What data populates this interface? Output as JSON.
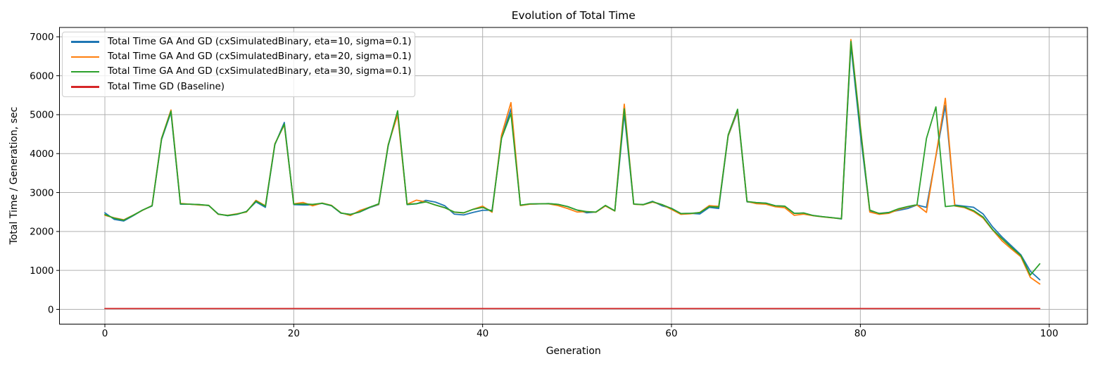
{
  "chart_data": {
    "type": "line",
    "title": "Evolution of Total Time",
    "xlabel": "Generation",
    "ylabel": "Total Time / Generation, sec",
    "grid": true,
    "legend_position": "upper left",
    "xticks": [
      0,
      20,
      40,
      60,
      80,
      100
    ],
    "yticks": [
      0,
      1000,
      2000,
      3000,
      4000,
      5000,
      6000,
      7000
    ],
    "xlim": [
      -4.95,
      103.95
    ],
    "ylim": [
      -380,
      7240
    ],
    "x": [
      0,
      1,
      2,
      3,
      4,
      5,
      6,
      7,
      8,
      9,
      10,
      11,
      12,
      13,
      14,
      15,
      16,
      17,
      18,
      19,
      20,
      21,
      22,
      23,
      24,
      25,
      26,
      27,
      28,
      29,
      30,
      31,
      32,
      33,
      34,
      35,
      36,
      37,
      38,
      39,
      40,
      41,
      42,
      43,
      44,
      45,
      46,
      47,
      48,
      49,
      50,
      51,
      52,
      53,
      54,
      55,
      56,
      57,
      58,
      59,
      60,
      61,
      62,
      63,
      64,
      65,
      66,
      67,
      68,
      69,
      70,
      71,
      72,
      73,
      74,
      75,
      76,
      77,
      78,
      79,
      80,
      81,
      82,
      83,
      84,
      85,
      86,
      87,
      88,
      89,
      90,
      91,
      92,
      93,
      94,
      95,
      96,
      97,
      98,
      99
    ],
    "series": [
      {
        "id": "ga-eta10",
        "name": "Total Time GA And GD (cxSimulatedBinary, eta=10, sigma=0.1)",
        "color": "#1f77b4",
        "values": [
          2480,
          2310,
          2270,
          2405,
          2550,
          2655,
          4360,
          5060,
          2700,
          2700,
          2690,
          2665,
          2450,
          2405,
          2440,
          2515,
          2760,
          2620,
          4230,
          4800,
          2690,
          2680,
          2680,
          2720,
          2660,
          2470,
          2440,
          2500,
          2610,
          2690,
          4200,
          5050,
          2690,
          2710,
          2800,
          2755,
          2660,
          2445,
          2425,
          2490,
          2545,
          2545,
          4390,
          5150,
          2675,
          2705,
          2710,
          2715,
          2695,
          2640,
          2550,
          2480,
          2500,
          2660,
          2530,
          5030,
          2700,
          2690,
          2775,
          2660,
          2595,
          2460,
          2465,
          2450,
          2620,
          2590,
          4450,
          5080,
          2760,
          2740,
          2730,
          2660,
          2650,
          2465,
          2475,
          2410,
          2380,
          2355,
          2320,
          6780,
          4500,
          2525,
          2465,
          2490,
          2540,
          2590,
          2680,
          2620,
          3930,
          5235,
          2680,
          2650,
          2620,
          2450,
          2120,
          1860,
          1630,
          1400,
          980,
          760
        ]
      },
      {
        "id": "ga-eta20",
        "name": "Total Time GA And GD (cxSimulatedBinary, eta=20, sigma=0.1)",
        "color": "#ff7f0e",
        "values": [
          2415,
          2350,
          2300,
          2420,
          2545,
          2665,
          4390,
          5120,
          2720,
          2700,
          2680,
          2670,
          2440,
          2415,
          2455,
          2500,
          2800,
          2660,
          4250,
          4740,
          2710,
          2745,
          2660,
          2730,
          2670,
          2480,
          2410,
          2540,
          2620,
          2700,
          4230,
          4990,
          2700,
          2805,
          2760,
          2680,
          2610,
          2495,
          2475,
          2570,
          2650,
          2495,
          4475,
          5310,
          2665,
          2700,
          2710,
          2710,
          2665,
          2590,
          2500,
          2510,
          2495,
          2655,
          2525,
          5270,
          2700,
          2685,
          2755,
          2690,
          2565,
          2440,
          2455,
          2490,
          2665,
          2645,
          4460,
          5110,
          2770,
          2715,
          2700,
          2635,
          2610,
          2415,
          2445,
          2405,
          2375,
          2350,
          2330,
          6930,
          4700,
          2500,
          2440,
          2465,
          2560,
          2630,
          2680,
          2490,
          3950,
          5420,
          2655,
          2615,
          2510,
          2345,
          2040,
          1760,
          1550,
          1350,
          820,
          650
        ]
      },
      {
        "id": "ga-eta30",
        "name": "Total Time GA And GD (cxSimulatedBinary, eta=30, sigma=0.1)",
        "color": "#2ca02c",
        "values": [
          2435,
          2340,
          2290,
          2415,
          2550,
          2660,
          4380,
          5090,
          2710,
          2700,
          2690,
          2670,
          2445,
          2410,
          2445,
          2510,
          2780,
          2650,
          4240,
          4760,
          2700,
          2710,
          2695,
          2725,
          2665,
          2475,
          2435,
          2505,
          2620,
          2710,
          4210,
          5100,
          2695,
          2715,
          2760,
          2680,
          2610,
          2500,
          2480,
          2570,
          2620,
          2520,
          4390,
          5030,
          2675,
          2710,
          2710,
          2715,
          2695,
          2640,
          2550,
          2510,
          2500,
          2670,
          2530,
          5150,
          2705,
          2690,
          2765,
          2690,
          2590,
          2460,
          2465,
          2485,
          2640,
          2625,
          4480,
          5140,
          2770,
          2740,
          2725,
          2660,
          2650,
          2465,
          2475,
          2410,
          2380,
          2355,
          2330,
          6880,
          4650,
          2550,
          2460,
          2485,
          2580,
          2640,
          2690,
          4390,
          5200,
          2640,
          2665,
          2630,
          2535,
          2370,
          2050,
          1815,
          1590,
          1380,
          880,
          1170
        ]
      },
      {
        "id": "gd-baseline",
        "name": "Total Time GD (Baseline)",
        "color": "#d62728",
        "values": [
          20,
          20,
          20,
          20,
          20,
          20,
          20,
          20,
          20,
          20,
          20,
          20,
          20,
          20,
          20,
          20,
          20,
          20,
          20,
          20,
          20,
          20,
          20,
          20,
          20,
          20,
          20,
          20,
          20,
          20,
          20,
          20,
          20,
          20,
          20,
          20,
          20,
          20,
          20,
          20,
          20,
          20,
          20,
          20,
          20,
          20,
          20,
          20,
          20,
          20,
          20,
          20,
          20,
          20,
          20,
          20,
          20,
          20,
          20,
          20,
          20,
          20,
          20,
          20,
          20,
          20,
          20,
          20,
          20,
          20,
          20,
          20,
          20,
          20,
          20,
          20,
          20,
          20,
          20,
          20,
          20,
          20,
          20,
          20,
          20,
          20,
          20,
          20,
          20,
          20,
          20,
          20,
          20,
          20,
          20,
          20,
          20,
          20,
          20,
          20
        ]
      }
    ]
  },
  "style": {
    "grid_color": "#b0b0b0",
    "spine_color": "#000000",
    "background": "#ffffff"
  }
}
